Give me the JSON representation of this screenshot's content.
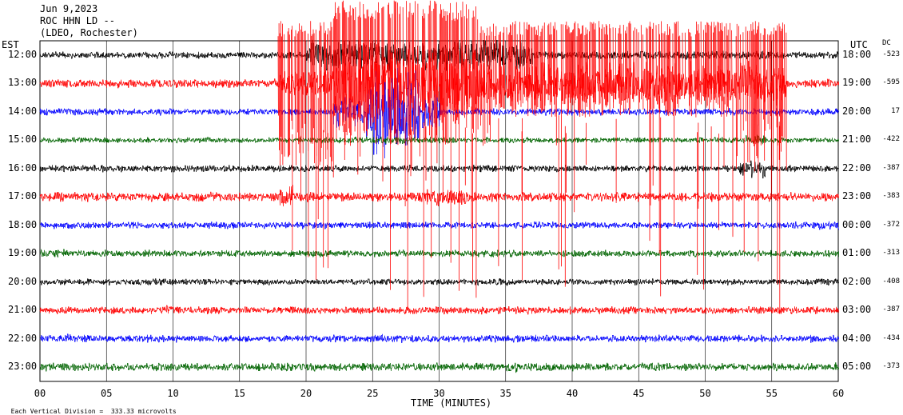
{
  "header": {
    "date": "Jun 9,2023",
    "station": "ROC HHN LD --",
    "network": "(LDEO, Rochester)"
  },
  "left_axis_label": "EST",
  "right_axis_label": "UTC",
  "dc_label": "DC",
  "xaxis_label": "TIME (MINUTES)",
  "footer": "Each Vertical Division =  333.33 microvolts",
  "colors": {
    "black": "#000000",
    "red": "#ff0000",
    "blue": "#0000ff",
    "green": "#006400"
  },
  "chart_data": {
    "type": "line",
    "title": "",
    "xlabel": "TIME (MINUTES)",
    "xlim": [
      0,
      60
    ],
    "xticks": [
      "00",
      "05",
      "10",
      "15",
      "20",
      "25",
      "30",
      "35",
      "40",
      "45",
      "50",
      "55",
      "60"
    ],
    "grid": "vertical lines every 5 minutes",
    "series": [
      {
        "est": "12:00",
        "utc": "18:00",
        "dc": "-523",
        "color": "black",
        "noise": 0.55,
        "events": [
          [
            20,
            37,
            4.5
          ],
          [
            37,
            56,
            1.2
          ]
        ]
      },
      {
        "est": "13:00",
        "utc": "19:00",
        "dc": "-595",
        "color": "red",
        "noise": 0.7,
        "events": [
          [
            18,
            22,
            3
          ],
          [
            22,
            33,
            9
          ],
          [
            33,
            56,
            5
          ]
        ]
      },
      {
        "est": "14:00",
        "utc": "20:00",
        "dc": "17",
        "color": "blue",
        "noise": 0.55,
        "events": [
          [
            22,
            30,
            5
          ],
          [
            24.5,
            28.5,
            3
          ]
        ]
      },
      {
        "est": "15:00",
        "utc": "21:00",
        "dc": "-422",
        "color": "green",
        "noise": 0.45,
        "events": [
          [
            21,
            31,
            1.3
          ],
          [
            53,
            54.5,
            2
          ]
        ]
      },
      {
        "est": "16:00",
        "utc": "22:00",
        "dc": "-387",
        "color": "black",
        "noise": 0.55,
        "events": [
          [
            52.5,
            54.5,
            3
          ]
        ]
      },
      {
        "est": "17:00",
        "utc": "23:00",
        "dc": "-383",
        "color": "red",
        "noise": 0.75,
        "events": [
          [
            18,
            19,
            2.5
          ],
          [
            29,
            32,
            2
          ]
        ]
      },
      {
        "est": "18:00",
        "utc": "00:00",
        "dc": "-372",
        "color": "blue",
        "noise": 0.55,
        "events": [
          [
            58,
            60,
            1.5
          ]
        ]
      },
      {
        "est": "19:00",
        "utc": "01:00",
        "dc": "-313",
        "color": "green",
        "noise": 0.55,
        "events": [
          [
            0,
            2,
            1.5
          ]
        ]
      },
      {
        "est": "20:00",
        "utc": "02:00",
        "dc": "-408",
        "color": "black",
        "noise": 0.5,
        "events": [
          [
            34,
            36,
            1.5
          ]
        ]
      },
      {
        "est": "21:00",
        "utc": "03:00",
        "dc": "-387",
        "color": "red",
        "noise": 0.6,
        "events": [
          [
            9,
            10.5,
            1.5
          ]
        ]
      },
      {
        "est": "22:00",
        "utc": "04:00",
        "dc": "-434",
        "color": "blue",
        "noise": 0.6,
        "events": [
          [
            2,
            3,
            1.4
          ]
        ]
      },
      {
        "est": "23:00",
        "utc": "05:00",
        "dc": "-373",
        "color": "green",
        "noise": 0.65,
        "events": [
          [
            35,
            36,
            1.5
          ]
        ]
      }
    ],
    "spikes": [
      {
        "start": 17.9,
        "end": 56.2,
        "color": "red",
        "from_trace": "13:00",
        "reach": "above top to 17:00 trace"
      }
    ]
  }
}
